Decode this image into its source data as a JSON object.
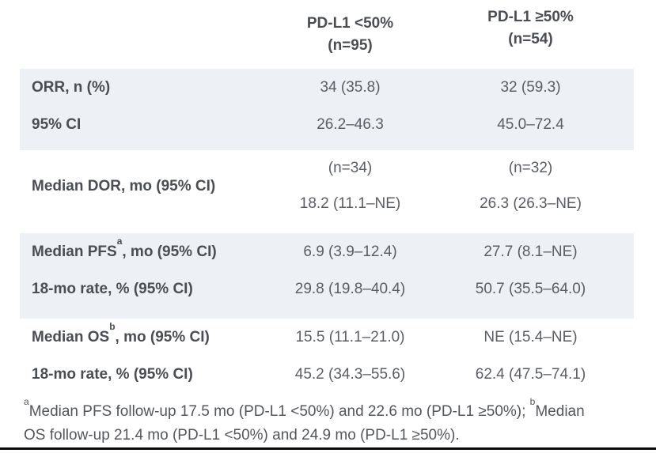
{
  "table": {
    "header": {
      "col_lt50": {
        "line1": "PD-L1 <50%",
        "line2": "(n=95)"
      },
      "col_ge50": {
        "line1": "PD-L1 ≥50%",
        "line2": "(n=54)"
      }
    },
    "orr": {
      "row1": {
        "label": "ORR, n (%)",
        "lt50": "34 (35.8)",
        "ge50": "32 (59.3)"
      },
      "row2": {
        "label": "95% CI",
        "lt50": "26.2–46.3",
        "ge50": "45.0–72.4"
      }
    },
    "dor": {
      "label": "Median DOR, mo (95% CI)",
      "lt50_n": "(n=34)",
      "ge50_n": "(n=32)",
      "lt50_value": "18.2 (11.1–NE)",
      "ge50_value": "26.3 (26.3–NE)"
    },
    "pfs": {
      "row1": {
        "label_text": "Median PFS",
        "label_sup": "a",
        "label_rest": ", mo (95% CI)",
        "lt50": "6.9 (3.9–12.4)",
        "ge50": "27.7 (8.1–NE)"
      },
      "row2": {
        "label": "18-mo rate, % (95% CI)",
        "lt50": "29.8 (19.8–40.4)",
        "ge50": "50.7 (35.5–64.0)"
      }
    },
    "os": {
      "row1": {
        "label_text": "Median OS",
        "label_sup": "b",
        "label_rest": ", mo (95% CI)",
        "lt50": "15.5 (11.1–21.0)",
        "ge50": "NE (15.4–NE)"
      },
      "row2": {
        "label": "18-mo rate, % (95% CI)",
        "lt50": "45.2 (34.3–55.6)",
        "ge50": "62.4 (47.5–74.1)"
      }
    }
  },
  "footnote": {
    "line1": {
      "sup_a": "a",
      "text": "Median PFS follow-up 17.5 mo (PD-L1 <50%) and 22.6 mo (PD-L1 ≥50%); ",
      "sup_b": "b",
      "text_end": "Median"
    },
    "line2": "OS follow-up 21.4 mo (PD-L1 <50%) and 24.9 mo (PD-L1 ≥50%)."
  },
  "colors": {
    "row_shade": "#edf1f6",
    "label_text": "#4a4d52",
    "value_text": "#5a5e63",
    "bottom_rule": "#0a0a0a"
  }
}
